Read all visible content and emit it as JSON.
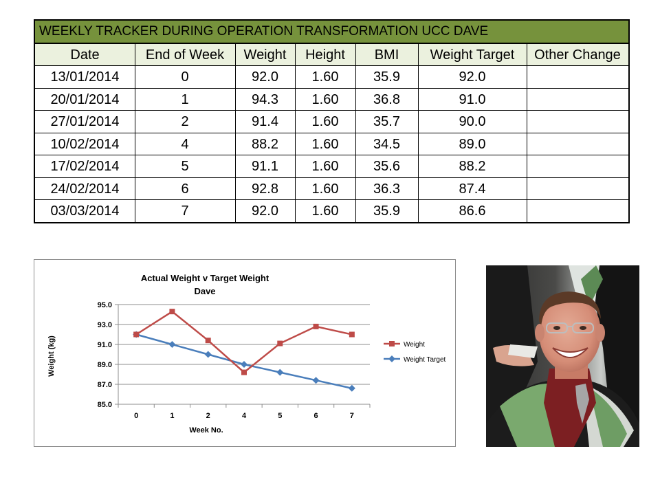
{
  "table": {
    "title": "WEEKLY TRACKER DURING OPERATION TRANSFORMATION UCC DAVE",
    "headers": [
      "Date",
      "End of Week",
      "Weight",
      "Height",
      "BMI",
      "Weight Target",
      "Other Change"
    ],
    "rows": [
      [
        "13/01/2014",
        "0",
        "92.0",
        "1.60",
        "35.9",
        "92.0",
        ""
      ],
      [
        "20/01/2014",
        "1",
        "94.3",
        "1.60",
        "36.8",
        "91.0",
        ""
      ],
      [
        "27/01/2014",
        "2",
        "91.4",
        "1.60",
        "35.7",
        "90.0",
        ""
      ],
      [
        "10/02/2014",
        "4",
        "88.2",
        "1.60",
        "34.5",
        "89.0",
        ""
      ],
      [
        "17/02/2014",
        "5",
        "91.1",
        "1.60",
        "35.6",
        "88.2",
        ""
      ],
      [
        "24/02/2014",
        "6",
        "92.8",
        "1.60",
        "36.3",
        "87.4",
        ""
      ],
      [
        "03/03/2014",
        "7",
        "92.0",
        "1.60",
        "35.9",
        "86.6",
        ""
      ]
    ],
    "colors": {
      "title_bg": "#76923c",
      "header_bg": "#ebf1de"
    }
  },
  "chart_data": {
    "type": "line",
    "title": "Actual Weight v Target Weight",
    "subtitle": "Dave",
    "xlabel": "Week No.",
    "ylabel": "Weight (kg)",
    "categories": [
      "0",
      "1",
      "2",
      "4",
      "5",
      "6",
      "7"
    ],
    "ylim": [
      85.0,
      95.0
    ],
    "yticks": [
      "85.0",
      "87.0",
      "89.0",
      "91.0",
      "93.0",
      "95.0"
    ],
    "grid": true,
    "legend": "right",
    "series": [
      {
        "name": "Weight",
        "values": [
          92.0,
          94.3,
          91.4,
          88.2,
          91.1,
          92.8,
          92.0
        ],
        "color": "#be4b48",
        "marker": "square"
      },
      {
        "name": "Weight Target",
        "values": [
          92.0,
          91.0,
          90.0,
          89.0,
          88.2,
          87.4,
          86.6
        ],
        "color": "#4a7ebb",
        "marker": "diamond"
      }
    ]
  },
  "photo": {
    "subject": "smiling-graduate-photo"
  }
}
